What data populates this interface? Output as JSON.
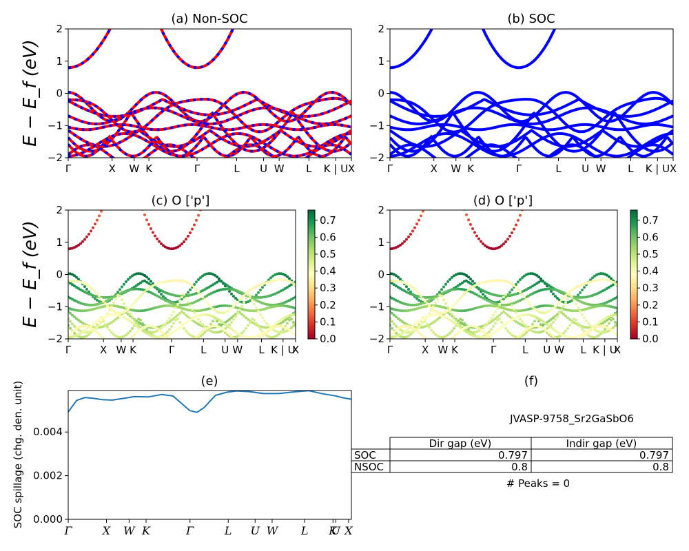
{
  "chart_data": [
    {
      "panel": "a",
      "type": "line",
      "title": "(a) Non-SOC",
      "ylabel": "E − E_f (eV)",
      "ylim": [
        -2,
        2
      ],
      "yticks": [
        "2",
        "1",
        "0",
        "−1",
        "−2"
      ],
      "kpath": [
        {
          "label": "Γ",
          "pos": 0.0
        },
        {
          "label": "X",
          "pos": 0.155
        },
        {
          "label": "W",
          "pos": 0.233
        },
        {
          "label": "K",
          "pos": 0.285
        },
        {
          "label": "Γ",
          "pos": 0.455
        },
        {
          "label": "L",
          "pos": 0.595
        },
        {
          "label": "U",
          "pos": 0.69
        },
        {
          "label": "W",
          "pos": 0.745
        },
        {
          "label": "L",
          "pos": 0.85
        },
        {
          "label": "K | U",
          "pos": 0.945
        },
        {
          "label": "X",
          "pos": 1.0
        }
      ],
      "series": [
        {
          "color": "#ff0000",
          "dash_color": "#0000ff",
          "note": "valence and conduction bands"
        }
      ],
      "conduction_min_eV": 0.797,
      "valence_max_eV": 0.0
    },
    {
      "panel": "b",
      "type": "line",
      "title": "(b) SOC",
      "ylim": [
        -2,
        2
      ],
      "yticks": [
        "2",
        "1",
        "0",
        "−1",
        "−2"
      ],
      "series": [
        {
          "color": "#0000ff"
        }
      ]
    },
    {
      "panel": "c",
      "type": "scatter",
      "title": "(c)  O ['p']",
      "ylabel": "E − E_f (eV)",
      "ylim": [
        -2,
        2
      ],
      "yticks": [
        "2",
        "1",
        "0",
        "−1",
        "−2"
      ],
      "colorbar": {
        "cmap": "RdYlGn",
        "min": 0.0,
        "max": 0.75,
        "ticks": [
          "0.0",
          "0.1",
          "0.2",
          "0.3",
          "0.4",
          "0.5",
          "0.6",
          "0.7"
        ]
      }
    },
    {
      "panel": "d",
      "type": "scatter",
      "title": "(d) O ['p']",
      "ylim": [
        -2,
        2
      ],
      "yticks": [
        "2",
        "1",
        "0",
        "−1",
        "−2"
      ],
      "colorbar": {
        "cmap": "RdYlGn",
        "min": 0.0,
        "max": 0.75,
        "ticks": [
          "0.0",
          "0.1",
          "0.2",
          "0.3",
          "0.4",
          "0.5",
          "0.6",
          "0.7"
        ]
      }
    },
    {
      "panel": "e",
      "type": "line",
      "title": "(e)",
      "ylabel": "SOC spillage (chg. den. unit)",
      "ylim": [
        0,
        0.0059
      ],
      "yticks": [
        "0.000",
        "0.002",
        "0.004"
      ],
      "series": [
        {
          "color": "#1f77b4",
          "x": [
            0,
            0.03,
            0.06,
            0.09,
            0.12,
            0.155,
            0.19,
            0.233,
            0.285,
            0.33,
            0.37,
            0.41,
            0.43,
            0.455,
            0.48,
            0.52,
            0.56,
            0.595,
            0.64,
            0.69,
            0.745,
            0.8,
            0.85,
            0.9,
            0.945,
            0.97,
            1.0
          ],
          "y": [
            0.00492,
            0.00545,
            0.00558,
            0.00554,
            0.00548,
            0.00546,
            0.00553,
            0.00562,
            0.00561,
            0.00572,
            0.00565,
            0.0052,
            0.00498,
            0.0049,
            0.00512,
            0.00568,
            0.00582,
            0.00588,
            0.00585,
            0.00576,
            0.00576,
            0.00584,
            0.00589,
            0.00575,
            0.00565,
            0.00557,
            0.0055
          ]
        }
      ],
      "xticks": [
        "Γ",
        "X",
        "W",
        "K",
        "Γ",
        "L",
        "U",
        "W",
        "L",
        "K",
        "U",
        "X"
      ]
    }
  ],
  "table": {
    "title": "(f)",
    "material": "JVASP-9758_Sr2GaSbO6",
    "headers": [
      "Dir gap (eV)",
      "Indir gap (eV)"
    ],
    "rows": [
      {
        "label": "SOC",
        "dir": "0.797",
        "indir": "0.797"
      },
      {
        "label": "NSOC",
        "dir": "0.8",
        "indir": "0.8"
      }
    ],
    "peaks": "# Peaks = 0"
  }
}
